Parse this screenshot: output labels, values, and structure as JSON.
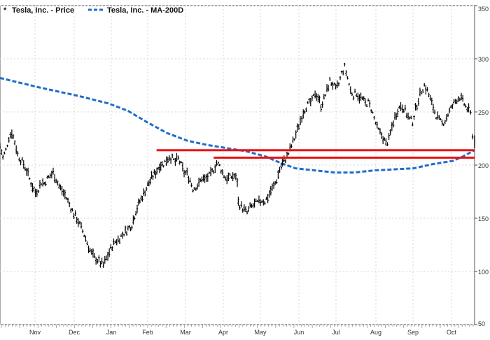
{
  "chart_data": {
    "type": "line",
    "title": "",
    "xlabel": "",
    "ylabel": "",
    "ylim": [
      50,
      350
    ],
    "y_ticks": [
      50,
      100,
      150,
      200,
      250,
      300,
      350
    ],
    "x_tick_labels": [
      "Nov",
      "Dec",
      "Jan",
      "Feb",
      "Mar",
      "Apr",
      "May",
      "Jun",
      "Jul",
      "Aug",
      "Sep",
      "Oct"
    ],
    "grid": true,
    "legend": {
      "position": "top-left",
      "price_label": "Tesla, Inc. - Price",
      "ma_label": "Tesla, Inc. - MA-200D"
    },
    "series": [
      {
        "name": "Tesla, Inc. - Price",
        "style": "ohlc-bars",
        "color": "#000000",
        "points": [
          [
            0.0,
            218
          ],
          [
            3.0,
            207
          ],
          [
            6.0,
            214
          ],
          [
            9.0,
            226
          ],
          [
            12.0,
            231
          ],
          [
            15.0,
            222
          ],
          [
            18.0,
            210
          ],
          [
            21.0,
            205
          ],
          [
            24.0,
            201
          ],
          [
            27.0,
            195
          ],
          [
            30.0,
            187
          ],
          [
            33.0,
            180
          ],
          [
            36.0,
            174
          ],
          [
            39.0,
            178
          ],
          [
            42.0,
            184
          ],
          [
            45.0,
            183
          ],
          [
            48.0,
            187
          ],
          [
            51.0,
            190
          ],
          [
            54.0,
            193
          ],
          [
            57.0,
            187
          ],
          [
            60.0,
            180
          ],
          [
            63.0,
            176
          ],
          [
            66.0,
            172
          ],
          [
            69.0,
            166
          ],
          [
            72.0,
            160
          ],
          [
            75.0,
            154
          ],
          [
            78.0,
            150
          ],
          [
            81.0,
            144
          ],
          [
            84.0,
            138
          ],
          [
            87.0,
            131
          ],
          [
            90.0,
            123
          ],
          [
            93.0,
            117
          ],
          [
            96.0,
            113
          ],
          [
            99.0,
            111
          ],
          [
            102.0,
            108
          ],
          [
            105.0,
            106
          ],
          [
            108.0,
            112
          ],
          [
            111.0,
            118
          ],
          [
            114.0,
            124
          ],
          [
            117.0,
            128
          ],
          [
            120.0,
            130
          ],
          [
            123.0,
            133
          ],
          [
            126.0,
            136
          ],
          [
            130.0,
            140
          ],
          [
            134.0,
            144
          ],
          [
            138.0,
            157
          ],
          [
            142.0,
            166
          ],
          [
            146.0,
            173
          ],
          [
            150.0,
            181
          ],
          [
            154.0,
            188
          ],
          [
            158.0,
            193
          ],
          [
            162.0,
            200
          ],
          [
            166.0,
            201
          ],
          [
            169.0,
            205
          ],
          [
            172.0,
            208
          ],
          [
            175.0,
            206
          ],
          [
            178.0,
            203
          ],
          [
            181.0,
            206
          ],
          [
            184.0,
            200
          ],
          [
            187.0,
            193
          ],
          [
            190.0,
            192
          ],
          [
            193.0,
            186
          ],
          [
            196.0,
            178
          ],
          [
            199.0,
            180
          ],
          [
            202.0,
            182
          ],
          [
            205.0,
            188
          ],
          [
            208.0,
            186
          ],
          [
            211.0,
            189
          ],
          [
            214.0,
            191
          ],
          [
            217.0,
            196
          ],
          [
            220.0,
            202
          ],
          [
            223.0,
            199
          ],
          [
            226.0,
            193
          ],
          [
            229.0,
            188
          ],
          [
            232.0,
            188
          ],
          [
            235.0,
            189
          ],
          [
            238.0,
            190
          ],
          [
            241.0,
            185
          ],
          [
            242.0,
            165
          ],
          [
            245.0,
            161
          ],
          [
            248.0,
            158
          ],
          [
            251.0,
            155
          ],
          [
            254.0,
            160
          ],
          [
            257.0,
            162
          ],
          [
            260.0,
            164
          ],
          [
            263.0,
            165
          ],
          [
            266.0,
            167
          ],
          [
            269.0,
            166
          ],
          [
            272.0,
            170
          ],
          [
            275.0,
            176
          ],
          [
            278.0,
            180
          ],
          [
            281.0,
            186
          ],
          [
            284.0,
            196
          ],
          [
            287.0,
            202
          ],
          [
            290.0,
            206
          ],
          [
            293.0,
            211
          ],
          [
            296.0,
            218
          ],
          [
            299.0,
            225
          ],
          [
            302.0,
            233
          ],
          [
            305.0,
            242
          ],
          [
            308.0,
            250
          ],
          [
            311.0,
            255
          ],
          [
            314.0,
            258
          ],
          [
            317.0,
            260
          ],
          [
            320.0,
            268
          ],
          [
            323.0,
            264
          ],
          [
            326.0,
            256
          ],
          [
            329.0,
            262
          ],
          [
            332.0,
            270
          ],
          [
            335.0,
            279
          ],
          [
            338.0,
            276
          ],
          [
            341.0,
            271
          ],
          [
            344.0,
            276
          ],
          [
            347.0,
            286
          ],
          [
            350.0,
            292
          ],
          [
            353.0,
            282
          ],
          [
            356.0,
            270
          ],
          [
            359.0,
            266
          ],
          [
            362.0,
            268
          ],
          [
            365.0,
            264
          ],
          [
            368.0,
            262
          ],
          [
            371.0,
            258
          ],
          [
            374.0,
            259
          ],
          [
            377.0,
            253
          ],
          [
            380.0,
            244
          ],
          [
            383.0,
            235
          ],
          [
            386.0,
            230
          ],
          [
            389.0,
            226
          ],
          [
            392.0,
            220
          ],
          [
            395.0,
            224
          ],
          [
            398.0,
            236
          ],
          [
            401.0,
            245
          ],
          [
            404.0,
            252
          ],
          [
            407.0,
            256
          ],
          [
            410.0,
            254
          ],
          [
            413.0,
            248
          ],
          [
            416.0,
            243
          ],
          [
            419.0,
            241
          ],
          [
            422.0,
            252
          ],
          [
            425.0,
            262
          ],
          [
            428.0,
            270
          ],
          [
            431.0,
            275
          ],
          [
            434.0,
            270
          ],
          [
            437.0,
            262
          ],
          [
            440.0,
            254
          ],
          [
            443.0,
            247
          ],
          [
            446.0,
            242
          ],
          [
            449.0,
            239
          ],
          [
            452.0,
            242
          ],
          [
            455.0,
            248
          ],
          [
            458.0,
            253
          ],
          [
            461.0,
            258
          ],
          [
            464.0,
            262
          ],
          [
            467.0,
            264
          ],
          [
            470.0,
            260
          ],
          [
            473.0,
            255
          ],
          [
            476.0,
            251
          ],
          [
            478.0,
            248
          ],
          [
            480.0,
            229
          ],
          [
            482.0,
            219
          ]
        ]
      },
      {
        "name": "Tesla, Inc. - MA-200D",
        "style": "dashed",
        "color": "#1f6dc8",
        "points": [
          [
            0.0,
            282
          ],
          [
            40.0,
            273
          ],
          [
            80.0,
            265
          ],
          [
            110.0,
            258
          ],
          [
            130.0,
            251
          ],
          [
            150.0,
            240
          ],
          [
            170.0,
            230
          ],
          [
            190.0,
            223
          ],
          [
            210.0,
            219
          ],
          [
            230.0,
            216
          ],
          [
            250.0,
            213
          ],
          [
            270.0,
            208
          ],
          [
            285.0,
            202
          ],
          [
            300.0,
            197
          ],
          [
            320.0,
            195
          ],
          [
            340.0,
            193
          ],
          [
            360.0,
            193
          ],
          [
            380.0,
            195
          ],
          [
            400.0,
            196
          ],
          [
            420.0,
            197
          ],
          [
            440.0,
            201
          ],
          [
            460.0,
            204
          ],
          [
            470.0,
            208
          ],
          [
            482.0,
            214
          ]
        ]
      }
    ],
    "reference_lines": [
      {
        "name": "support-line-upper",
        "value": 214,
        "x_start": 159.0,
        "x_end": 482.0,
        "color": "#ee1111"
      },
      {
        "name": "support-line-lower",
        "value": 207,
        "x_start": 217.0,
        "x_end": 482.0,
        "color": "#ee1111"
      }
    ]
  }
}
